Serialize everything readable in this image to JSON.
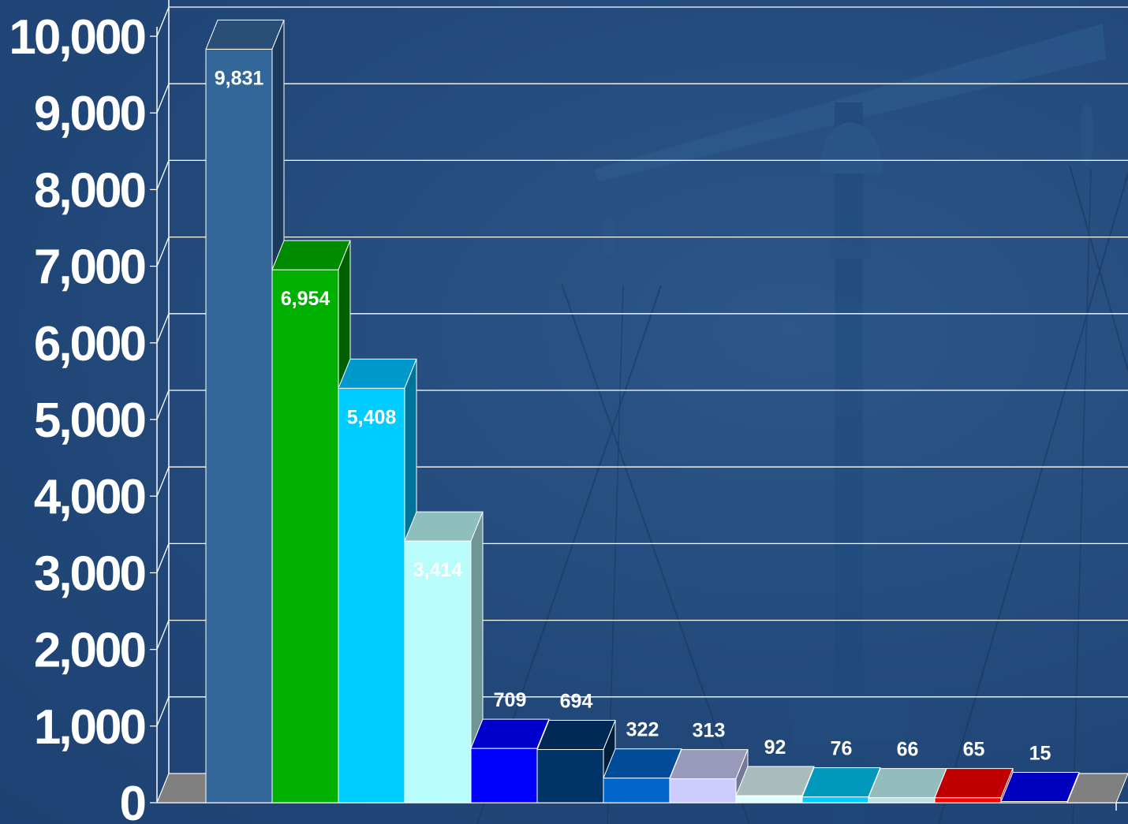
{
  "chart_data": {
    "type": "bar",
    "style": "3d",
    "title": "",
    "xlabel": "",
    "ylabel": "",
    "ylim": [
      0,
      10000
    ],
    "yticks": [
      "0",
      "1,000",
      "2,000",
      "3,000",
      "4,000",
      "5,000",
      "6,000",
      "7,000",
      "8,000",
      "9,000",
      "10,000"
    ],
    "grid": true,
    "legend": "none",
    "background": "#22497a",
    "series": [
      {
        "value": 9831,
        "label": "9,831",
        "color": "#336699",
        "top": "#2a4f76",
        "side": "#1b3a5d"
      },
      {
        "value": 6954,
        "label": "6,954",
        "color": "#00b000",
        "top": "#008a00",
        "side": "#006000"
      },
      {
        "value": 5408,
        "label": "5,408",
        "color": "#00ccff",
        "top": "#0099cc",
        "side": "#007399"
      },
      {
        "value": 3414,
        "label": "3,414",
        "color": "#b8fcfb",
        "top": "#8ebfbd",
        "side": "#6f9695"
      },
      {
        "value": 709,
        "label": "709",
        "color": "#0000ff",
        "top": "#0000cc",
        "side": "#000099"
      },
      {
        "value": 694,
        "label": "694",
        "color": "#003366",
        "top": "#002a55",
        "side": "#001e3c"
      },
      {
        "value": 322,
        "label": "322",
        "color": "#0066cc",
        "top": "#004c99",
        "side": "#003a73"
      },
      {
        "value": 313,
        "label": "313",
        "color": "#ccccff",
        "top": "#9999bb",
        "side": "#77779a"
      },
      {
        "value": 92,
        "label": "92",
        "color": "#e0ffff",
        "top": "#a8bcbc",
        "side": "#889999"
      },
      {
        "value": 76,
        "label": "76",
        "color": "#00ccff",
        "top": "#0099bb",
        "side": "#007799"
      },
      {
        "value": 66,
        "label": "66",
        "color": "#bfe0e0",
        "top": "#93bcbc",
        "side": "#739999"
      },
      {
        "value": 65,
        "label": "65",
        "color": "#ff0000",
        "top": "#c00000",
        "side": "#900000"
      },
      {
        "value": 15,
        "label": "15",
        "color": "#0000ff",
        "top": "#0000c0",
        "side": "#000090"
      }
    ],
    "floor_color": "#808080"
  }
}
